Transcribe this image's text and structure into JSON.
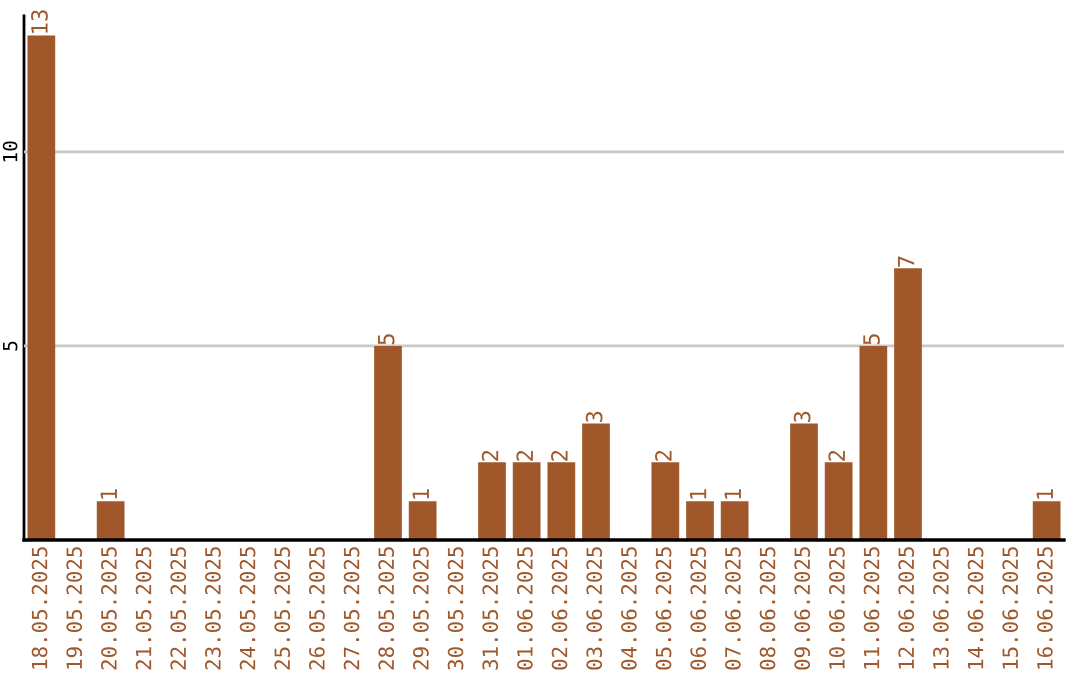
{
  "chart_data": {
    "type": "bar",
    "categories": [
      "18.05.2025",
      "19.05.2025",
      "20.05.2025",
      "21.05.2025",
      "22.05.2025",
      "23.05.2025",
      "24.05.2025",
      "25.05.2025",
      "26.05.2025",
      "27.05.2025",
      "28.05.2025",
      "29.05.2025",
      "30.05.2025",
      "31.05.2025",
      "01.06.2025",
      "02.06.2025",
      "03.06.2025",
      "04.06.2025",
      "05.06.2025",
      "06.06.2025",
      "07.06.2025",
      "08.06.2025",
      "09.06.2025",
      "10.06.2025",
      "11.06.2025",
      "12.06.2025",
      "13.06.2025",
      "14.06.2025",
      "15.06.2025",
      "16.06.2025"
    ],
    "values": [
      13,
      0,
      1,
      0,
      0,
      0,
      0,
      0,
      0,
      0,
      5,
      1,
      0,
      2,
      2,
      2,
      3,
      0,
      2,
      1,
      1,
      0,
      3,
      2,
      5,
      7,
      0,
      0,
      0,
      1
    ],
    "value_labels": [
      "13",
      null,
      "1",
      null,
      null,
      null,
      null,
      null,
      null,
      null,
      "5",
      "1",
      null,
      "2",
      "2",
      "2",
      "3",
      null,
      "2",
      "1",
      "1",
      null,
      "3",
      "2",
      "5",
      "7",
      null,
      null,
      null,
      "1"
    ],
    "color": "#a0582a",
    "ylim": [
      0,
      13.5
    ],
    "yticks": [
      5,
      10
    ],
    "grid": "y"
  }
}
